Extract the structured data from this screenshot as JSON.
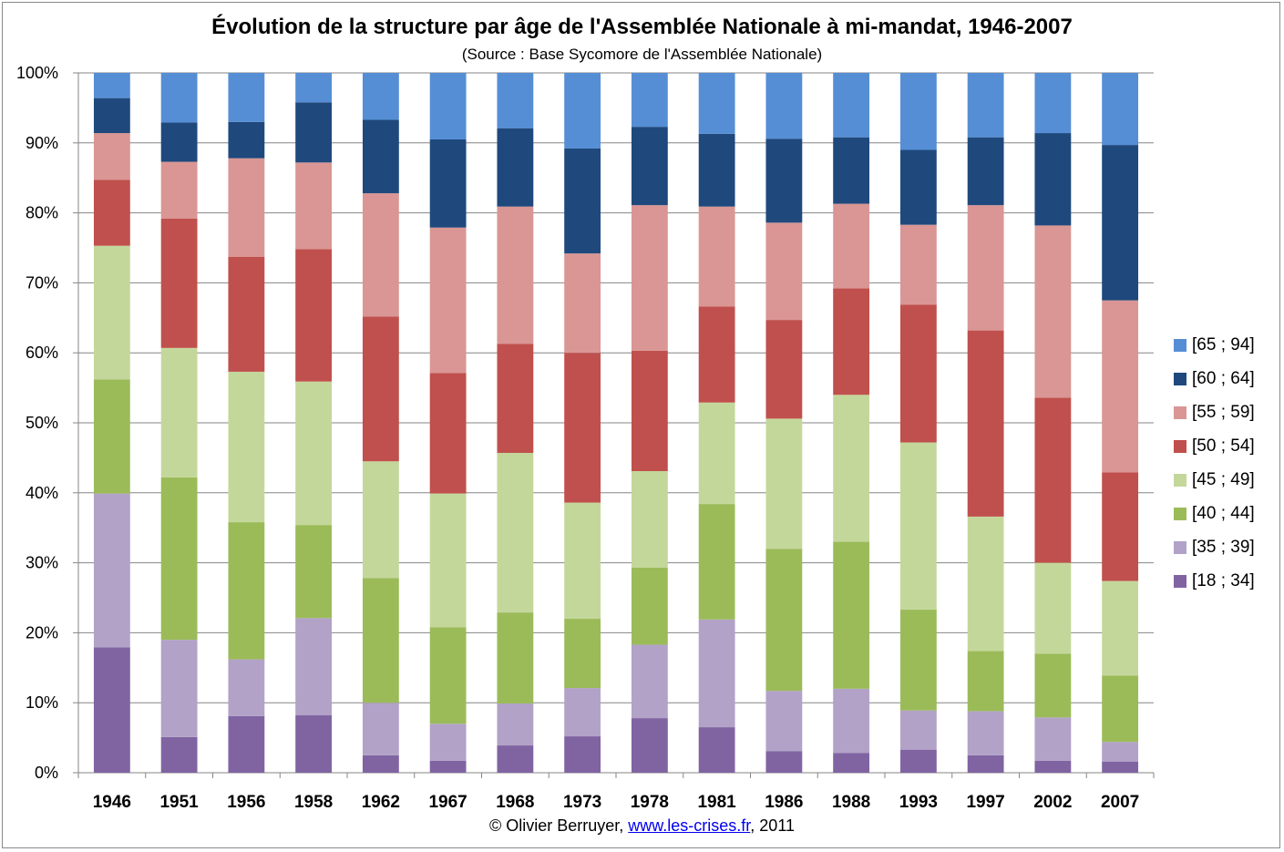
{
  "chart_data": {
    "type": "bar",
    "stacked": true,
    "title": "Évolution de la structure par âge de l'Assemblée Nationale à mi-mandat, 1946-2007",
    "subtitle": "(Source : Base Sycomore de l'Assemblée Nationale)",
    "xlabel": "",
    "ylabel": "",
    "ylim": [
      0,
      100
    ],
    "yticks": [
      "0%",
      "10%",
      "20%",
      "30%",
      "40%",
      "50%",
      "60%",
      "70%",
      "80%",
      "90%",
      "100%"
    ],
    "grid": true,
    "legend_position": "right",
    "categories": [
      "1946",
      "1951",
      "1956",
      "1958",
      "1962",
      "1967",
      "1968",
      "1973",
      "1978",
      "1981",
      "1986",
      "1988",
      "1993",
      "1997",
      "2002",
      "2007"
    ],
    "series": [
      {
        "name": "[18 ; 34]",
        "color": "#8064a2",
        "values": [
          17.9,
          5.1,
          8.1,
          8.2,
          2.5,
          1.7,
          3.9,
          5.2,
          7.8,
          6.5,
          3.1,
          2.8,
          3.3,
          2.5,
          1.7,
          1.6
        ]
      },
      {
        "name": "[35 ; 39]",
        "color": "#b2a2c7",
        "values": [
          22.0,
          13.9,
          8.1,
          13.9,
          7.5,
          5.3,
          6.0,
          6.9,
          10.5,
          15.4,
          8.6,
          9.2,
          5.6,
          6.3,
          6.2,
          2.8
        ]
      },
      {
        "name": "[40 ; 44]",
        "color": "#9bbb59",
        "values": [
          16.3,
          23.2,
          19.6,
          13.3,
          17.8,
          13.8,
          13.0,
          9.9,
          11.0,
          16.5,
          20.3,
          21.0,
          14.4,
          8.6,
          9.1,
          9.5
        ]
      },
      {
        "name": "[45 ; 49]",
        "color": "#c4d79b",
        "values": [
          19.1,
          18.5,
          21.5,
          20.5,
          16.7,
          19.1,
          22.8,
          16.6,
          13.8,
          14.5,
          18.6,
          21.0,
          23.9,
          19.2,
          13.0,
          13.5
        ]
      },
      {
        "name": "[50 ; 54]",
        "color": "#c0504d",
        "values": [
          9.4,
          18.5,
          16.4,
          18.9,
          20.7,
          17.2,
          15.6,
          21.4,
          17.2,
          13.7,
          14.1,
          15.2,
          19.7,
          26.6,
          23.6,
          15.5
        ]
      },
      {
        "name": "[55 ; 59]",
        "color": "#d99694",
        "values": [
          6.7,
          8.1,
          14.1,
          12.4,
          17.6,
          20.8,
          19.6,
          14.2,
          20.8,
          14.3,
          13.9,
          12.1,
          11.4,
          17.9,
          24.6,
          24.6
        ]
      },
      {
        "name": "[60 ; 64]",
        "color": "#1f497d",
        "values": [
          5.0,
          5.6,
          5.2,
          8.6,
          10.5,
          12.6,
          11.2,
          15.0,
          11.2,
          10.4,
          12.0,
          9.5,
          10.7,
          9.7,
          13.2,
          22.2
        ]
      },
      {
        "name": "[65 ; 94]",
        "color": "#558ed5",
        "values": [
          3.6,
          7.1,
          7.0,
          4.2,
          6.7,
          9.5,
          7.9,
          10.8,
          7.7,
          8.7,
          9.4,
          9.2,
          11.0,
          9.2,
          8.6,
          10.3
        ]
      }
    ]
  },
  "footer": {
    "prefix": "© Olivier Berruyer, ",
    "link": "www.les-crises.fr",
    "suffix": ",  2011"
  }
}
